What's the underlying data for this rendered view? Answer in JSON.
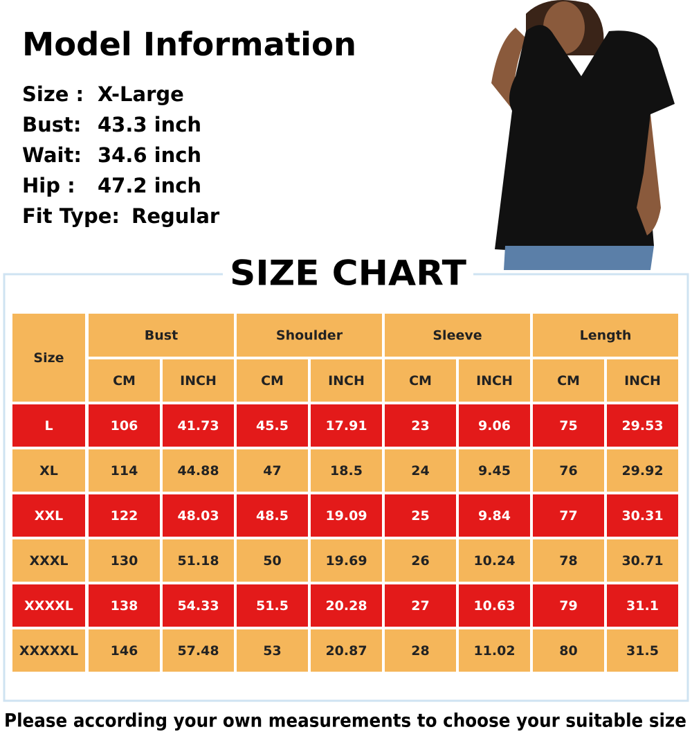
{
  "header": {
    "title": "Model Information",
    "lines": [
      {
        "label": "Size :",
        "value": "X-Large"
      },
      {
        "label": "Bust:",
        "value": "43.3 inch"
      },
      {
        "label": "Wait:",
        "value": "34.6 inch"
      },
      {
        "label": "Hip  :",
        "value": "47.2 inch"
      },
      {
        "label": "Fit Type:",
        "value": "Regular"
      }
    ]
  },
  "chart_title": "SIZE CHART",
  "table": {
    "size_label": "Size",
    "groups": [
      "Bust",
      "Shoulder",
      "Sleeve",
      "Length"
    ],
    "units": [
      "CM",
      "INCH",
      "CM",
      "INCH",
      "CM",
      "INCH",
      "CM",
      "INCH"
    ],
    "rows": [
      [
        "L",
        106,
        41.73,
        45.5,
        17.91,
        23,
        9.06,
        75,
        29.53
      ],
      [
        "XL",
        114,
        44.88,
        47,
        18.5,
        24,
        9.45,
        76,
        29.92
      ],
      [
        "XXL",
        122,
        48.03,
        48.5,
        19.09,
        25,
        9.84,
        77,
        30.31
      ],
      [
        "XXXL",
        130,
        51.18,
        50,
        19.69,
        26,
        10.24,
        78,
        30.71
      ],
      [
        "XXXXL",
        138,
        54.33,
        51.5,
        20.28,
        27,
        10.63,
        79,
        31.1
      ],
      [
        "XXXXXL",
        146,
        57.48,
        53,
        20.87,
        28,
        11.02,
        80,
        31.5
      ]
    ]
  },
  "footer": "Please according your own measurements to choose your suitable size"
}
